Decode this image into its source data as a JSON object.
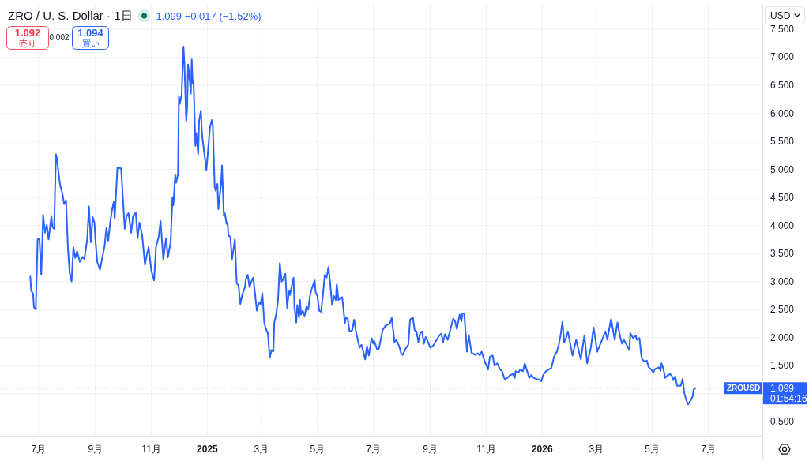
{
  "chart_data": {
    "type": "line",
    "title": "ZRO / U. S. Dollar · 1日",
    "subtitle": "1.099 −0.017 (−1.52%)",
    "x": [
      "2024-06-22",
      "2024-06-23",
      "2024-06-25",
      "2024-06-26",
      "2024-06-28",
      "2024-06-30",
      "2024-07-02",
      "2024-07-04",
      "2024-07-06",
      "2024-07-08",
      "2024-07-10",
      "2024-07-12",
      "2024-07-15",
      "2024-07-16",
      "2024-07-18",
      "2024-07-20",
      "2024-07-21",
      "2024-07-24",
      "2024-07-25",
      "2024-07-27",
      "2024-07-29",
      "2024-07-31",
      "2024-08-02",
      "2024-08-04",
      "2024-08-06",
      "2024-08-08",
      "2024-08-10",
      "2024-08-12",
      "2024-08-15",
      "2024-08-18",
      "2024-08-20",
      "2024-08-23",
      "2024-08-25",
      "2024-08-27",
      "2024-08-29",
      "2024-08-31",
      "2024-09-01",
      "2024-09-03",
      "2024-09-06",
      "2024-09-09",
      "2024-09-11",
      "2024-09-13",
      "2024-09-15",
      "2024-09-17",
      "2024-09-19",
      "2024-09-21",
      "2024-09-22",
      "2024-09-25",
      "2024-09-29",
      "2024-10-03",
      "2024-10-05",
      "2024-10-07",
      "2024-10-10",
      "2024-10-12",
      "2024-10-15",
      "2024-10-17",
      "2024-10-19",
      "2024-10-22",
      "2024-10-25",
      "2024-10-27",
      "2024-10-29",
      "2024-11-01",
      "2024-11-04",
      "2024-11-06",
      "2024-11-09",
      "2024-11-11",
      "2024-11-14",
      "2024-11-17",
      "2024-11-19",
      "2024-11-22",
      "2024-11-24",
      "2024-11-25",
      "2024-11-27",
      "2024-11-28",
      "2024-11-30",
      "2024-12-01",
      "2024-12-02",
      "2024-12-04",
      "2024-12-06",
      "2024-12-07",
      "2024-12-09",
      "2024-12-10",
      "2024-12-11",
      "2024-12-13",
      "2024-12-14",
      "2024-12-15",
      "2024-12-16",
      "2024-12-17",
      "2024-12-19",
      "2024-12-20",
      "2024-12-22",
      "2024-12-23",
      "2024-12-25",
      "2024-12-26",
      "2024-12-27",
      "2024-12-29",
      "2024-12-31",
      "2025-01-02",
      "2025-01-04",
      "2025-01-06",
      "2025-01-07",
      "2025-01-09",
      "2025-01-10",
      "2025-01-12",
      "2025-01-13",
      "2025-01-14",
      "2025-01-16",
      "2025-01-17",
      "2025-01-19",
      "2025-01-20",
      "2025-01-22",
      "2025-01-23",
      "2025-01-24",
      "2025-01-26",
      "2025-01-28",
      "2025-01-31",
      "2025-02-02",
      "2025-02-04",
      "2025-02-06",
      "2025-02-08",
      "2025-02-11",
      "2025-02-12",
      "2025-02-14",
      "2025-02-16",
      "2025-02-18",
      "2025-02-20",
      "2025-02-21",
      "2025-02-24",
      "2025-02-26",
      "2025-02-28",
      "2025-03-02",
      "2025-03-04",
      "2025-03-06",
      "2025-03-08",
      "2025-03-10",
      "2025-03-12",
      "2025-03-14",
      "2025-03-15",
      "2025-03-17",
      "2025-03-19",
      "2025-03-21",
      "2025-03-23",
      "2025-03-24",
      "2025-03-27",
      "2025-03-29",
      "2025-03-31",
      "2025-04-01",
      "2025-04-05",
      "2025-04-06",
      "2025-04-08",
      "2025-04-09",
      "2025-04-11",
      "2025-04-12",
      "2025-04-13",
      "2025-04-15",
      "2025-04-17",
      "2025-04-19",
      "2025-04-21",
      "2025-04-23",
      "2025-04-25",
      "2025-04-28",
      "2025-04-29",
      "2025-05-01",
      "2025-05-03",
      "2025-05-05",
      "2025-05-07",
      "2025-05-09",
      "2025-05-11",
      "2025-05-13",
      "2025-05-15",
      "2025-05-17",
      "2025-05-19",
      "2025-05-21",
      "2025-05-22",
      "2025-05-24",
      "2025-05-26",
      "2025-05-28",
      "2025-05-31",
      "2025-06-01",
      "2025-06-03",
      "2025-06-05",
      "2025-06-08",
      "2025-06-10",
      "2025-06-12",
      "2025-06-14",
      "2025-06-16",
      "2025-06-18",
      "2025-06-20",
      "2025-06-22",
      "2025-06-24",
      "2025-06-26",
      "2025-06-29",
      "2025-07-01",
      "2025-07-02",
      "2025-07-05",
      "2025-07-07",
      "2025-07-11",
      "2025-07-14",
      "2025-07-19",
      "2025-07-21",
      "2025-07-24",
      "2025-07-26",
      "2025-07-29",
      "2025-07-31",
      "2025-08-02",
      "2025-08-05",
      "2025-08-08",
      "2025-08-10",
      "2025-08-13",
      "2025-08-15",
      "2025-08-17",
      "2025-08-19",
      "2025-08-21",
      "2025-08-23",
      "2025-08-25",
      "2025-08-27",
      "2025-08-29",
      "2025-09-01",
      "2025-09-04",
      "2025-09-08",
      "2025-09-11",
      "2025-09-13",
      "2025-09-15",
      "2025-09-17",
      "2025-09-20",
      "2025-09-23",
      "2025-09-26",
      "2025-09-28",
      "2025-09-30",
      "2025-10-03",
      "2025-10-05",
      "2025-10-06",
      "2025-10-08",
      "2025-10-11",
      "2025-10-13",
      "2025-10-16",
      "2025-10-20",
      "2025-10-23",
      "2025-10-25",
      "2025-10-27",
      "2025-10-29",
      "2025-10-31",
      "2025-11-03",
      "2025-11-05",
      "2025-11-08",
      "2025-11-10",
      "2025-11-13",
      "2025-11-16",
      "2025-11-18",
      "2025-11-21",
      "2025-11-24",
      "2025-11-27",
      "2025-11-30",
      "2025-12-02",
      "2025-12-03",
      "2025-12-06",
      "2025-12-08",
      "2025-12-11",
      "2025-12-13",
      "2025-12-15",
      "2025-12-18",
      "2025-12-20",
      "2025-12-23",
      "2025-12-26",
      "2025-12-29",
      "2025-12-31",
      "2026-01-02",
      "2026-01-05",
      "2026-01-08",
      "2026-01-11",
      "2026-01-14",
      "2026-01-17",
      "2026-01-19",
      "2026-01-21",
      "2026-01-23",
      "2026-01-25",
      "2026-01-27",
      "2026-01-29",
      "2026-02-03",
      "2026-02-07",
      "2026-02-12",
      "2026-02-16",
      "2026-02-19",
      "2026-02-23",
      "2026-02-26",
      "2026-03-02",
      "2026-03-05",
      "2026-03-11",
      "2026-03-13",
      "2026-03-15",
      "2026-03-17",
      "2026-03-19",
      "2026-03-21",
      "2026-03-24",
      "2026-03-27",
      "2026-03-29",
      "2026-03-31",
      "2026-04-03",
      "2026-04-06",
      "2026-04-07",
      "2026-04-10",
      "2026-04-13",
      "2026-04-14",
      "2026-04-17",
      "2026-04-19",
      "2026-04-20",
      "2026-04-23",
      "2026-04-25",
      "2026-04-27",
      "2026-04-30",
      "2026-05-02",
      "2026-05-04",
      "2026-05-08",
      "2026-05-10",
      "2026-05-11",
      "2026-05-13",
      "2026-05-15",
      "2026-05-18",
      "2026-05-20",
      "2026-05-22",
      "2026-05-24",
      "2026-05-26",
      "2026-05-28",
      "2026-05-30",
      "2026-06-01",
      "2026-06-03",
      "2026-06-05",
      "2026-06-07",
      "2026-06-09",
      "2026-06-11",
      "2026-06-14",
      "2026-06-15",
      "2026-06-17"
    ],
    "series": [
      {
        "color": "#2962ff",
        "values": [
          3.09,
          2.83,
          2.79,
          2.54,
          2.5,
          3.75,
          3.77,
          3.12,
          4.19,
          3.87,
          4.01,
          3.75,
          4.17,
          3.98,
          3.94,
          5.27,
          5.2,
          4.78,
          4.69,
          4.57,
          4.38,
          4.45,
          3.61,
          3.14,
          3.0,
          3.61,
          3.42,
          3.54,
          3.35,
          3.44,
          3.4,
          3.75,
          4.34,
          3.7,
          4.15,
          4.05,
          3.75,
          3.35,
          3.21,
          3.47,
          3.63,
          3.96,
          3.73,
          4.03,
          4.27,
          4.42,
          4.12,
          5.03,
          5.02,
          3.94,
          4.17,
          4.22,
          3.87,
          4.17,
          4.23,
          3.77,
          4.05,
          3.82,
          3.3,
          3.47,
          3.61,
          3.19,
          3.02,
          3.61,
          3.8,
          4.08,
          3.4,
          3.77,
          3.43,
          3.7,
          4.5,
          4.36,
          4.9,
          4.76,
          4.92,
          6.31,
          6.17,
          6.33,
          7.19,
          6.89,
          5.86,
          6.1,
          6.87,
          6.56,
          6.35,
          6.96,
          6.54,
          6.56,
          5.42,
          5.65,
          5.27,
          5.86,
          6.05,
          5.67,
          5.51,
          5.25,
          4.99,
          5.39,
          5.77,
          5.88,
          5.77,
          4.69,
          4.62,
          4.74,
          4.29,
          4.45,
          4.74,
          5.07,
          4.17,
          4.22,
          4.03,
          4.05,
          3.82,
          3.8,
          3.4,
          3.75,
          2.97,
          2.93,
          2.6,
          2.76,
          2.9,
          3.04,
          3.12,
          2.9,
          3.0,
          3.07,
          2.93,
          2.48,
          2.62,
          2.6,
          2.79,
          2.27,
          2.15,
          2.08,
          1.64,
          1.78,
          1.75,
          2.27,
          2.41,
          2.65,
          3.33,
          3.0,
          3.02,
          3.14,
          2.53,
          2.83,
          2.76,
          3.07,
          2.53,
          2.27,
          2.58,
          2.36,
          2.67,
          2.41,
          2.48,
          2.39,
          2.55,
          2.5,
          2.76,
          2.88,
          3.02,
          2.81,
          2.74,
          2.48,
          2.46,
          2.76,
          3.12,
          3.07,
          3.26,
          2.95,
          2.58,
          2.74,
          2.67,
          2.95,
          2.67,
          2.71,
          2.72,
          2.25,
          2.35,
          2.34,
          2.11,
          2.13,
          2.32,
          2.11,
          1.96,
          1.82,
          1.87,
          1.75,
          1.61,
          1.85,
          1.68,
          1.99,
          1.89,
          1.94,
          1.79,
          1.8,
          2.13,
          2.21,
          2.25,
          2.35,
          1.92,
          1.96,
          1.85,
          1.73,
          1.69,
          1.8,
          1.87,
          2.32,
          2.36,
          2.13,
          2.11,
          1.92,
          2.08,
          2.11,
          1.89,
          2.01,
          1.94,
          1.82,
          1.85,
          1.96,
          2.04,
          2.07,
          1.92,
          2.06,
          1.96,
          2.15,
          2.34,
          2.29,
          2.15,
          2.41,
          2.29,
          2.43,
          2.43,
          1.75,
          2.04,
          1.73,
          1.69,
          1.72,
          1.68,
          1.75,
          1.64,
          1.55,
          1.43,
          1.66,
          1.68,
          1.5,
          1.54,
          1.43,
          1.41,
          1.26,
          1.28,
          1.33,
          1.35,
          1.28,
          1.4,
          1.38,
          1.43,
          1.4,
          1.54,
          1.43,
          1.28,
          1.33,
          1.28,
          1.26,
          1.25,
          1.22,
          1.33,
          1.4,
          1.43,
          1.46,
          1.66,
          1.75,
          1.87,
          2.04,
          2.28,
          1.92,
          1.99,
          2.11,
          1.68,
          1.96,
          1.61,
          2.04,
          1.54,
          1.82,
          2.18,
          1.75,
          1.87,
          2.11,
          1.96,
          2.15,
          2.33,
          2.15,
          1.96,
          2.27,
          2.01,
          1.89,
          1.96,
          1.87,
          1.78,
          2.08,
          1.99,
          2.04,
          1.96,
          1.99,
          1.68,
          1.61,
          1.57,
          1.59,
          1.47,
          1.43,
          1.38,
          1.44,
          1.47,
          1.41,
          1.54,
          1.45,
          1.28,
          1.33,
          1.35,
          1.33,
          1.24,
          1.31,
          1.14,
          1.14,
          1.14,
          1.26,
          1.0,
          0.89,
          0.81,
          0.86,
          0.95,
          1.07,
          1.1
        ]
      }
    ],
    "xlim": [
      "2024-05-20",
      "2026-08-29"
    ],
    "xticks": [
      {
        "value": "2024-07-01",
        "label": "7月"
      },
      {
        "value": "2024-09-01",
        "label": "9月"
      },
      {
        "value": "2024-11-01",
        "label": "11月"
      },
      {
        "value": "2025-01-01",
        "label": "2025"
      },
      {
        "value": "2025-03-01",
        "label": "3月"
      },
      {
        "value": "2025-05-01",
        "label": "5月"
      },
      {
        "value": "2025-07-01",
        "label": "7月"
      },
      {
        "value": "2025-09-01",
        "label": "9月"
      },
      {
        "value": "2025-11-01",
        "label": "11月"
      },
      {
        "value": "2026-01-01",
        "label": "2026"
      },
      {
        "value": "2026-03-01",
        "label": "3月"
      },
      {
        "value": "2026-05-01",
        "label": "5月"
      },
      {
        "value": "2026-07-01",
        "label": "7月"
      }
    ],
    "ylim": [
      0.25,
      7.95
    ],
    "yticks": [
      {
        "value": 0.5,
        "label": "0.500"
      },
      {
        "value": 1,
        "label": null
      },
      {
        "value": 1.5,
        "label": "1.500"
      },
      {
        "value": 2,
        "label": "2.000"
      },
      {
        "value": 2.5,
        "label": "2.500"
      },
      {
        "value": 3,
        "label": "3.000"
      },
      {
        "value": 3.5,
        "label": "3.500"
      },
      {
        "value": 4,
        "label": "4.000"
      },
      {
        "value": 4.5,
        "label": "4.500"
      },
      {
        "value": 5,
        "label": "5.000"
      },
      {
        "value": 5.5,
        "label": "5.500"
      },
      {
        "value": 6,
        "label": "6.000"
      },
      {
        "value": 6.5,
        "label": "6.500"
      },
      {
        "value": 7,
        "label": "7.000"
      },
      {
        "value": 7.5,
        "label": "7.500"
      }
    ],
    "grid": true,
    "ref_lines": [
      {
        "axis": "y",
        "value": 1.099,
        "label": "ZROUSD",
        "color": "#2962ff",
        "line_style": "dotted"
      }
    ],
    "annotations": [
      "1.092",
      "売り",
      "0.002",
      "1.094",
      "買い",
      "1.099",
      "01:54:16",
      "USD"
    ]
  }
}
